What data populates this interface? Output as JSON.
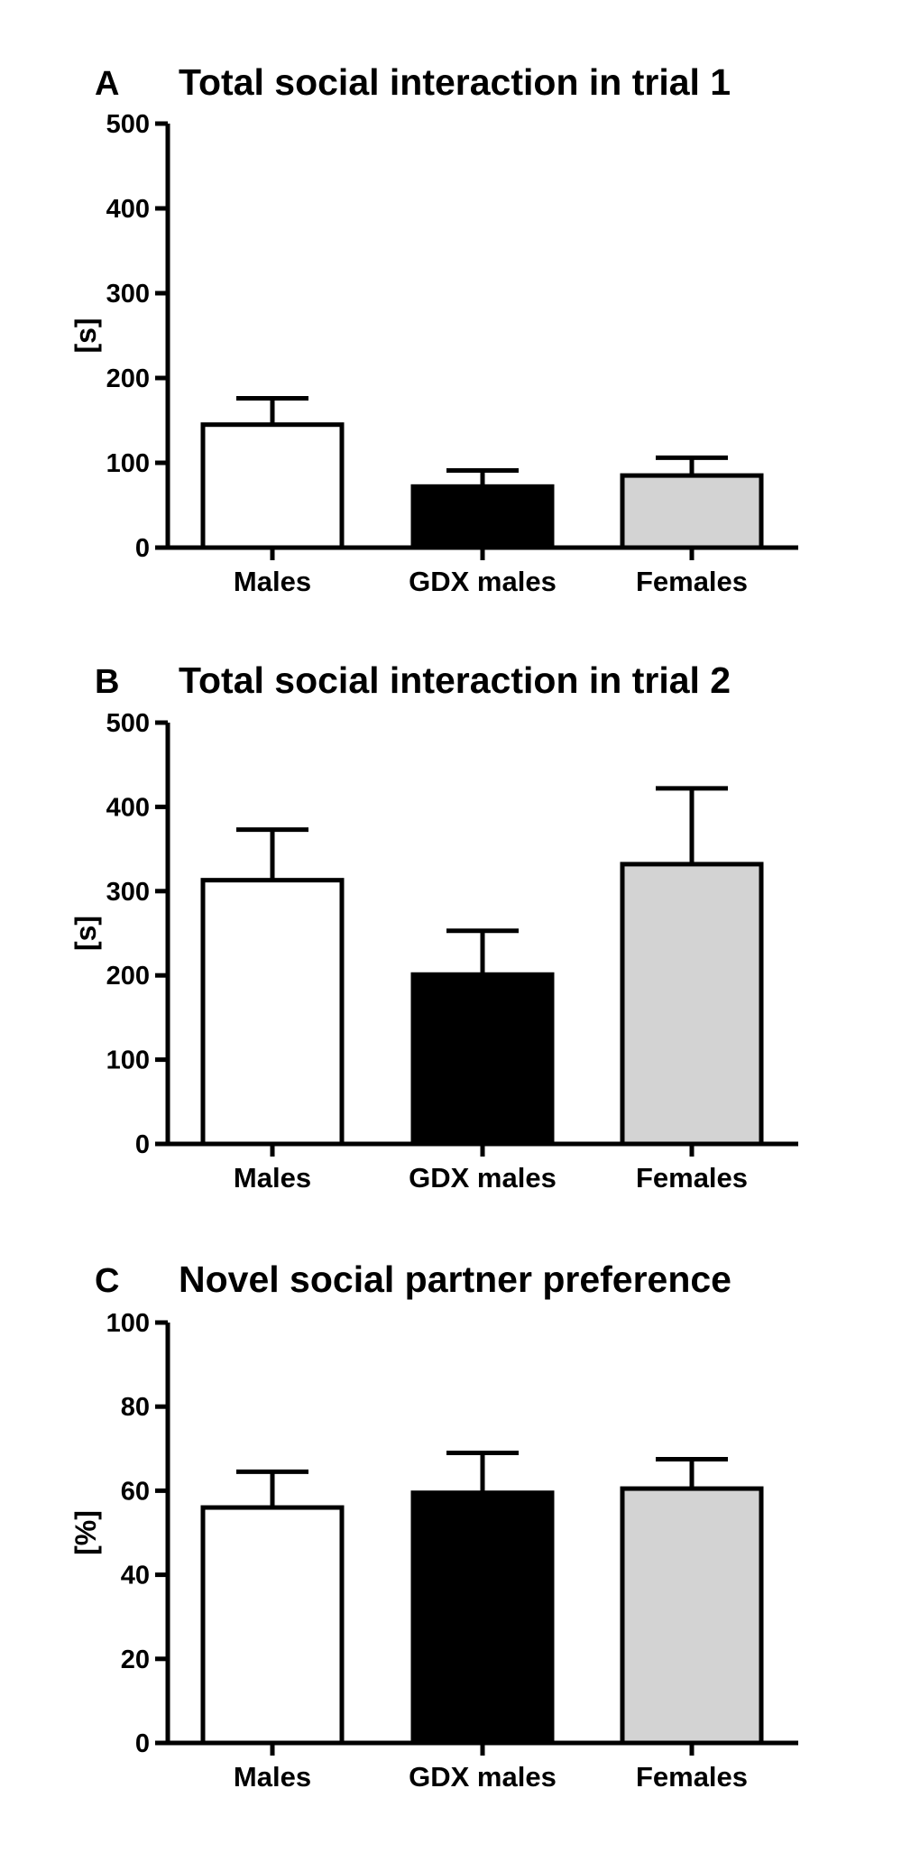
{
  "chart_data": [
    {
      "type": "bar",
      "panel_letter": "A",
      "title": "Total social interaction in trial 1",
      "xlabel": "",
      "ylabel": "[s]",
      "ylim": [
        0,
        500
      ],
      "yticks": [
        "0",
        "100",
        "200",
        "300",
        "400",
        "500"
      ],
      "categories": [
        "Males",
        "GDX males",
        "Females"
      ],
      "values": [
        145,
        72,
        85
      ],
      "errors": [
        31,
        19,
        21
      ],
      "colors": [
        "#ffffff",
        "#000000",
        "#d3d3d3"
      ],
      "grid": false
    },
    {
      "type": "bar",
      "panel_letter": "B",
      "title": "Total social interaction in trial 2",
      "xlabel": "",
      "ylabel": "[s]",
      "ylim": [
        0,
        500
      ],
      "yticks": [
        "0",
        "100",
        "200",
        "300",
        "400",
        "500"
      ],
      "categories": [
        "Males",
        "GDX males",
        "Females"
      ],
      "values": [
        313,
        201,
        332
      ],
      "errors": [
        60,
        52,
        90
      ],
      "colors": [
        "#ffffff",
        "#000000",
        "#d3d3d3"
      ],
      "grid": false
    },
    {
      "type": "bar",
      "panel_letter": "C",
      "title": "Novel social partner preference",
      "xlabel": "",
      "ylabel": "[%]",
      "ylim": [
        0,
        100
      ],
      "yticks": [
        "0",
        "20",
        "40",
        "60",
        "80",
        "100"
      ],
      "categories": [
        "Males",
        "GDX males",
        "Females"
      ],
      "values": [
        56,
        59.5,
        60.5
      ],
      "errors": [
        8.5,
        9.5,
        7
      ],
      "colors": [
        "#ffffff",
        "#000000",
        "#d3d3d3"
      ],
      "grid": false
    }
  ]
}
